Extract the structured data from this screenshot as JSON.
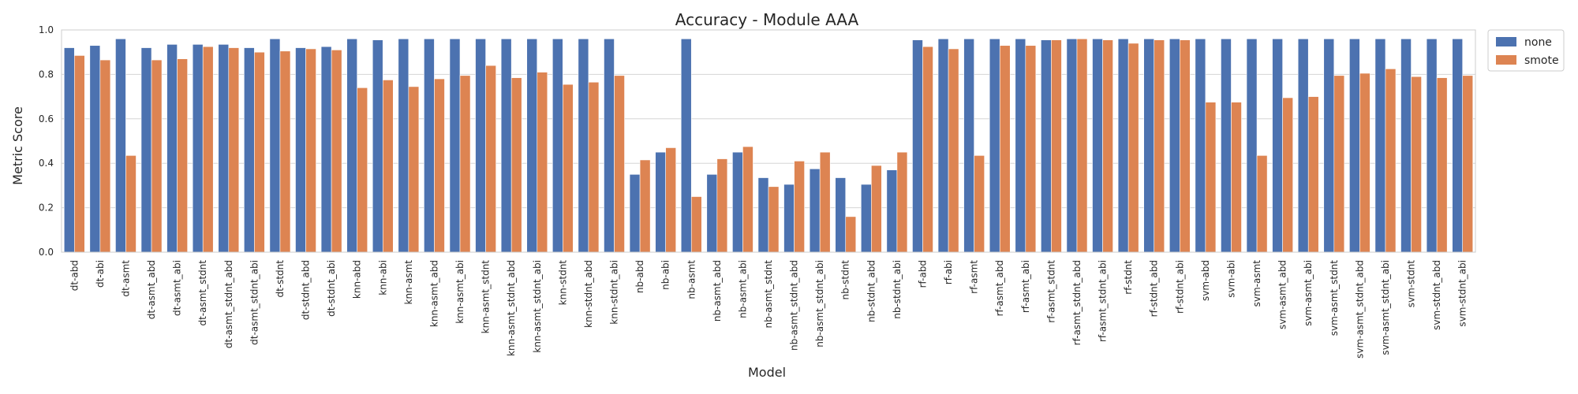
{
  "chart_data": {
    "type": "bar",
    "title": "Accuracy - Module AAA",
    "xlabel": "Model",
    "ylabel": "Metric Score",
    "ylim": [
      0,
      1.0
    ],
    "yticks": [
      "0.0",
      "0.2",
      "0.4",
      "0.6",
      "0.8",
      "1.0"
    ],
    "grid": true,
    "legend_position": "outside-top-right",
    "categories": [
      "dt-abd",
      "dt-abi",
      "dt-asmt",
      "dt-asmt_abd",
      "dt-asmt_abi",
      "dt-asmt_stdnt",
      "dt-asmt_stdnt_abd",
      "dt-asmt_stdnt_abi",
      "dt-stdnt",
      "dt-stdnt_abd",
      "dt-stdnt_abi",
      "knn-abd",
      "knn-abi",
      "knn-asmt",
      "knn-asmt_abd",
      "knn-asmt_abi",
      "knn-asmt_stdnt",
      "knn-asmt_stdnt_abd",
      "knn-asmt_stdnt_abi",
      "knn-stdnt",
      "knn-stdnt_abd",
      "knn-stdnt_abi",
      "nb-abd",
      "nb-abi",
      "nb-asmt",
      "nb-asmt_abd",
      "nb-asmt_abi",
      "nb-asmt_stdnt",
      "nb-asmt_stdnt_abd",
      "nb-asmt_stdnt_abi",
      "nb-stdnt",
      "nb-stdnt_abd",
      "nb-stdnt_abi",
      "rf-abd",
      "rf-abi",
      "rf-asmt",
      "rf-asmt_abd",
      "rf-asmt_abi",
      "rf-asmt_stdnt",
      "rf-asmt_stdnt_abd",
      "rf-asmt_stdnt_abi",
      "rf-stdnt",
      "rf-stdnt_abd",
      "rf-stdnt_abi",
      "svm-abd",
      "svm-abi",
      "svm-asmt",
      "svm-asmt_abd",
      "svm-asmt_abi",
      "svm-asmt_stdnt",
      "svm-asmt_stdnt_abd",
      "svm-asmt_stdnt_abi",
      "svm-stdnt",
      "svm-stdnt_abd",
      "svm-stdnt_abi"
    ],
    "series": [
      {
        "name": "none",
        "color": "#4c72b0",
        "values": [
          0.92,
          0.93,
          0.96,
          0.92,
          0.935,
          0.935,
          0.935,
          0.92,
          0.96,
          0.92,
          0.925,
          0.96,
          0.955,
          0.96,
          0.96,
          0.96,
          0.96,
          0.96,
          0.96,
          0.96,
          0.96,
          0.96,
          0.35,
          0.45,
          0.96,
          0.35,
          0.45,
          0.335,
          0.305,
          0.375,
          0.335,
          0.305,
          0.37,
          0.955,
          0.96,
          0.96,
          0.96,
          0.96,
          0.955,
          0.96,
          0.96,
          0.96,
          0.96,
          0.96,
          0.96,
          0.96,
          0.96,
          0.96,
          0.96,
          0.96,
          0.96,
          0.96,
          0.96,
          0.96,
          0.96
        ]
      },
      {
        "name": "smote",
        "color": "#dd8452",
        "values": [
          0.885,
          0.865,
          0.435,
          0.865,
          0.87,
          0.925,
          0.92,
          0.9,
          0.905,
          0.915,
          0.91,
          0.74,
          0.775,
          0.745,
          0.78,
          0.795,
          0.84,
          0.785,
          0.81,
          0.755,
          0.765,
          0.795,
          0.415,
          0.47,
          0.25,
          0.42,
          0.475,
          0.295,
          0.41,
          0.45,
          0.16,
          0.39,
          0.45,
          0.925,
          0.915,
          0.435,
          0.93,
          0.93,
          0.955,
          0.96,
          0.955,
          0.94,
          0.955,
          0.955,
          0.675,
          0.675,
          0.435,
          0.695,
          0.7,
          0.795,
          0.805,
          0.825,
          0.79,
          0.785,
          0.795
        ]
      }
    ]
  }
}
